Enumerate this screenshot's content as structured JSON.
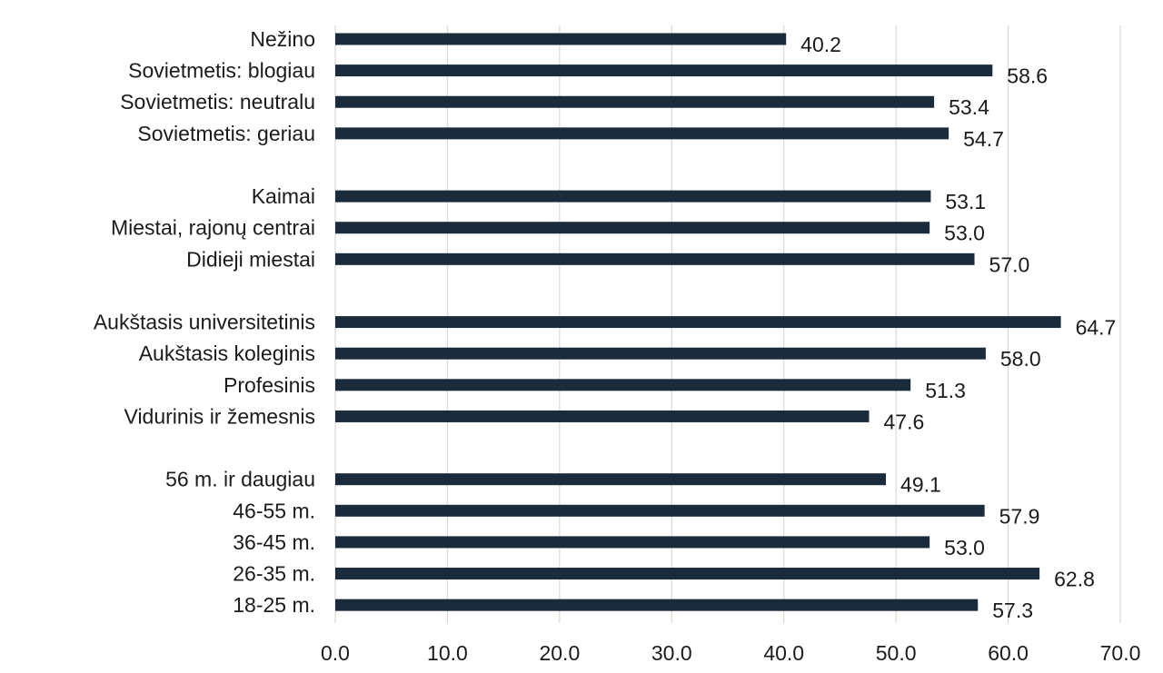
{
  "chart_data": {
    "type": "bar",
    "orientation": "horizontal",
    "title": "",
    "xlabel": "",
    "ylabel": "",
    "xlim": [
      0,
      70
    ],
    "x_ticks": [
      "0.0",
      "10.0",
      "20.0",
      "30.0",
      "40.0",
      "50.0",
      "60.0",
      "70.0"
    ],
    "grid": true,
    "legend": "none",
    "bar_color": "#1a2b3c",
    "categories": [
      "Nežino",
      "Sovietmetis: blogiau",
      "Sovietmetis: neutralu",
      "Sovietmetis: geriau",
      "",
      "Kaimai",
      "Miestai, rajonų centrai",
      "Didieji miestai",
      "",
      "Aukštasis universitetinis",
      "Aukštasis koleginis",
      "Profesinis",
      "Vidurinis ir žemesnis",
      "",
      "56 m. ir daugiau",
      "46-55 m.",
      "36-45 m.",
      "26-35 m.",
      "18-25 m."
    ],
    "values": [
      40.2,
      58.6,
      53.4,
      54.7,
      null,
      53.1,
      53.0,
      57.0,
      null,
      64.7,
      58.0,
      51.3,
      47.6,
      null,
      49.1,
      57.9,
      53.0,
      62.8,
      57.3
    ],
    "value_labels": [
      "40.2",
      "58.6",
      "53.4",
      "54.7",
      "",
      "53.1",
      "53.0",
      "57.0",
      "",
      "64.7",
      "58.0",
      "51.3",
      "47.6",
      "",
      "49.1",
      "57.9",
      "53.0",
      "62.8",
      "57.3"
    ]
  }
}
